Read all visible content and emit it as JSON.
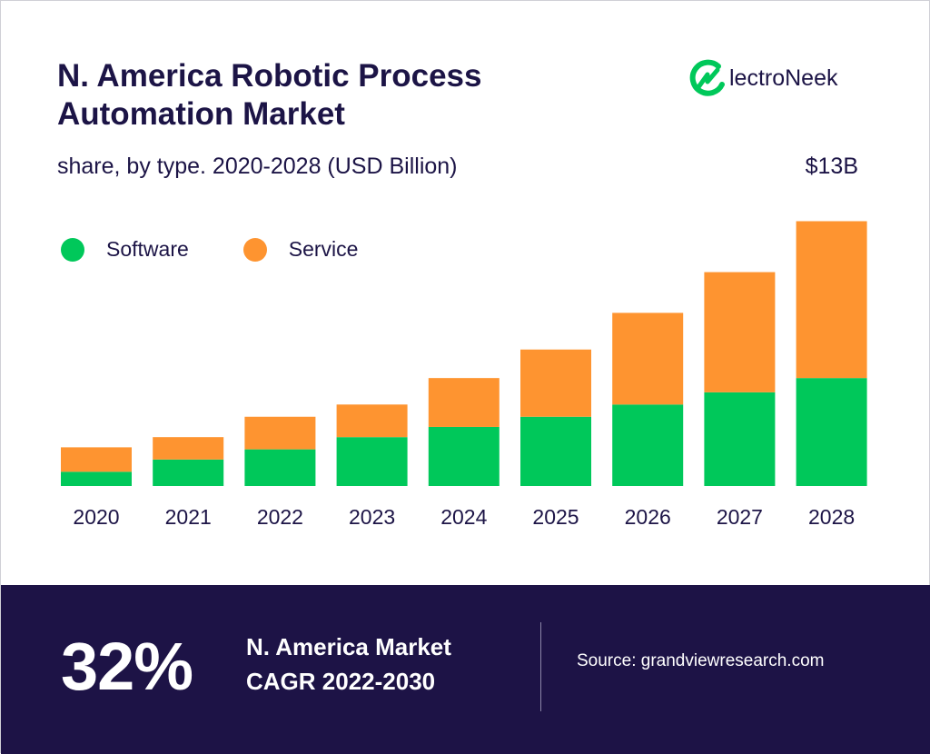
{
  "header": {
    "title_line1": "N. America Robotic Process",
    "title_line2": "Automation Market",
    "subtitle": "share, by type. 2020-2028 (USD Billion)",
    "logo_text": "lectroNeek",
    "total_label": "$13B"
  },
  "colors": {
    "software": "#00c85a",
    "service": "#fe9430",
    "navy": "#1d1346"
  },
  "legend": [
    {
      "label": "Software"
    },
    {
      "label": "Service"
    }
  ],
  "chart_data": {
    "type": "bar",
    "stacked": true,
    "categories": [
      "2020",
      "2021",
      "2022",
      "2023",
      "2024",
      "2025",
      "2026",
      "2027",
      "2028"
    ],
    "series": [
      {
        "name": "Software",
        "values": [
          0.7,
          1.3,
          1.8,
          2.4,
          2.9,
          3.4,
          4.0,
          4.6,
          5.3
        ]
      },
      {
        "name": "Service",
        "values": [
          1.2,
          1.1,
          1.6,
          1.6,
          2.4,
          3.3,
          4.5,
          5.9,
          7.7
        ]
      }
    ],
    "ylim": [
      0,
      13.2
    ],
    "grid": false,
    "legend_position": "top-left"
  },
  "footer": {
    "cagr_value": "32%",
    "cagr_label_line1": "N. America Market",
    "cagr_label_line2": "CAGR 2022-2030",
    "source": "Source: grandviewresearch.com"
  }
}
